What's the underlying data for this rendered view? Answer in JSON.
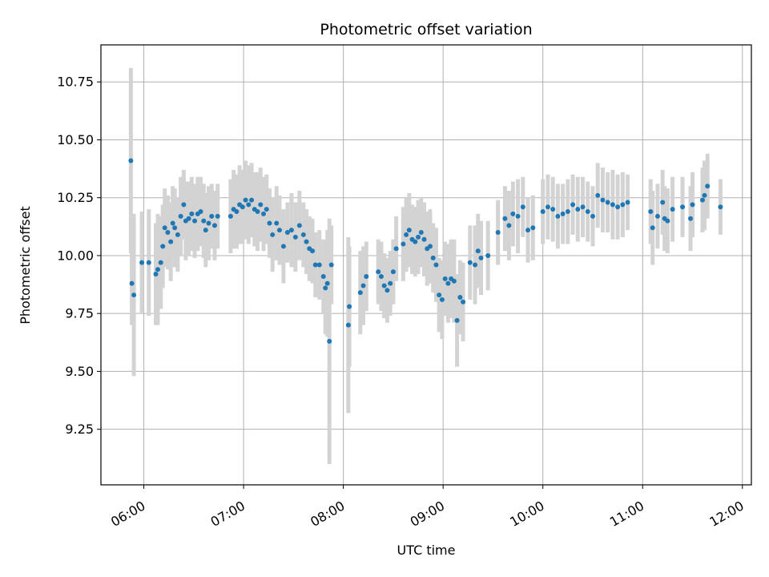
{
  "chart_data": {
    "type": "scatter",
    "title": "Photometric offset variation",
    "xlabel": "UTC time",
    "ylabel": "Photometric offset",
    "x_unit": "hours UTC",
    "xlim": [
      5.57,
      12.09
    ],
    "ylim": [
      9.01,
      10.91
    ],
    "xticks": [
      {
        "value": 6,
        "label": "06:00"
      },
      {
        "value": 7,
        "label": "07:00"
      },
      {
        "value": 8,
        "label": "08:00"
      },
      {
        "value": 9,
        "label": "09:00"
      },
      {
        "value": 10,
        "label": "10:00"
      },
      {
        "value": 11,
        "label": "11:00"
      },
      {
        "value": 12,
        "label": "12:00"
      }
    ],
    "yticks": [
      {
        "value": 9.25,
        "label": "9.25"
      },
      {
        "value": 9.5,
        "label": "9.50"
      },
      {
        "value": 9.75,
        "label": "9.75"
      },
      {
        "value": 10.0,
        "label": "10.00"
      },
      {
        "value": 10.25,
        "label": "10.25"
      },
      {
        "value": 10.5,
        "label": "10.50"
      },
      {
        "value": 10.75,
        "label": "10.75"
      }
    ],
    "grid": true,
    "point_color": "#1f77b4",
    "errorbar_color": "#d3d3d3",
    "series": [
      {
        "points": [
          [
            5.87,
            10.41,
            0.4
          ],
          [
            5.88,
            9.88,
            0.18
          ],
          [
            5.9,
            9.83,
            0.35
          ],
          [
            5.98,
            9.97,
            0.22
          ],
          [
            6.05,
            9.97,
            0.23
          ],
          [
            6.12,
            9.92,
            0.22
          ],
          [
            6.14,
            9.94,
            0.24
          ],
          [
            6.17,
            9.97,
            0.2
          ],
          [
            6.19,
            10.04,
            0.18
          ],
          [
            6.21,
            10.12,
            0.17
          ],
          [
            6.24,
            10.1,
            0.16
          ],
          [
            6.27,
            10.06,
            0.17
          ],
          [
            6.29,
            10.14,
            0.16
          ],
          [
            6.31,
            10.12,
            0.17
          ],
          [
            6.34,
            10.09,
            0.16
          ],
          [
            6.37,
            10.17,
            0.17
          ],
          [
            6.4,
            10.22,
            0.15
          ],
          [
            6.42,
            10.15,
            0.17
          ],
          [
            6.45,
            10.16,
            0.16
          ],
          [
            6.48,
            10.18,
            0.16
          ],
          [
            6.51,
            10.15,
            0.16
          ],
          [
            6.54,
            10.18,
            0.16
          ],
          [
            6.57,
            10.19,
            0.15
          ],
          [
            6.6,
            10.15,
            0.16
          ],
          [
            6.62,
            10.11,
            0.16
          ],
          [
            6.65,
            10.14,
            0.16
          ],
          [
            6.68,
            10.17,
            0.14
          ],
          [
            6.71,
            10.13,
            0.15
          ],
          [
            6.74,
            10.17,
            0.14
          ],
          [
            6.87,
            10.17,
            0.16
          ],
          [
            6.9,
            10.2,
            0.17
          ],
          [
            6.93,
            10.19,
            0.16
          ],
          [
            6.96,
            10.22,
            0.17
          ],
          [
            6.99,
            10.21,
            0.16
          ],
          [
            7.02,
            10.24,
            0.17
          ],
          [
            7.05,
            10.22,
            0.17
          ],
          [
            7.08,
            10.24,
            0.16
          ],
          [
            7.11,
            10.2,
            0.16
          ],
          [
            7.14,
            10.19,
            0.17
          ],
          [
            7.17,
            10.22,
            0.16
          ],
          [
            7.2,
            10.18,
            0.16
          ],
          [
            7.23,
            10.2,
            0.15
          ],
          [
            7.26,
            10.14,
            0.15
          ],
          [
            7.29,
            10.09,
            0.16
          ],
          [
            7.33,
            10.14,
            0.16
          ],
          [
            7.36,
            10.11,
            0.15
          ],
          [
            7.4,
            10.04,
            0.16
          ],
          [
            7.44,
            10.1,
            0.13
          ],
          [
            7.48,
            10.11,
            0.16
          ],
          [
            7.52,
            10.08,
            0.15
          ],
          [
            7.56,
            10.13,
            0.15
          ],
          [
            7.6,
            10.09,
            0.14
          ],
          [
            7.63,
            10.06,
            0.14
          ],
          [
            7.66,
            10.03,
            0.14
          ],
          [
            7.69,
            10.02,
            0.14
          ],
          [
            7.72,
            9.96,
            0.14
          ],
          [
            7.76,
            9.96,
            0.15
          ],
          [
            7.8,
            9.91,
            0.16
          ],
          [
            7.82,
            9.86,
            0.2
          ],
          [
            7.84,
            9.88,
            0.23
          ],
          [
            7.86,
            9.63,
            0.53
          ],
          [
            7.88,
            9.96,
            0.17
          ],
          [
            8.05,
            9.7,
            0.38
          ],
          [
            8.06,
            9.78,
            0.26
          ],
          [
            8.17,
            9.84,
            0.18
          ],
          [
            8.2,
            9.87,
            0.17
          ],
          [
            8.23,
            9.91,
            0.15
          ],
          [
            8.35,
            9.93,
            0.14
          ],
          [
            8.38,
            9.91,
            0.15
          ],
          [
            8.41,
            9.87,
            0.14
          ],
          [
            8.44,
            9.85,
            0.14
          ],
          [
            8.47,
            9.88,
            0.14
          ],
          [
            8.5,
            9.93,
            0.14
          ],
          [
            8.53,
            10.03,
            0.14
          ],
          [
            8.6,
            10.05,
            0.16
          ],
          [
            8.63,
            10.09,
            0.16
          ],
          [
            8.66,
            10.11,
            0.16
          ],
          [
            8.69,
            10.07,
            0.15
          ],
          [
            8.72,
            10.06,
            0.15
          ],
          [
            8.75,
            10.08,
            0.16
          ],
          [
            8.78,
            10.1,
            0.15
          ],
          [
            8.81,
            10.07,
            0.16
          ],
          [
            8.84,
            10.03,
            0.16
          ],
          [
            8.87,
            10.04,
            0.16
          ],
          [
            8.9,
            9.99,
            0.15
          ],
          [
            8.93,
            9.96,
            0.16
          ],
          [
            8.96,
            9.83,
            0.16
          ],
          [
            8.99,
            9.81,
            0.17
          ],
          [
            9.02,
            9.9,
            0.16
          ],
          [
            9.05,
            9.88,
            0.17
          ],
          [
            9.08,
            9.9,
            0.17
          ],
          [
            9.11,
            9.89,
            0.18
          ],
          [
            9.14,
            9.72,
            0.2
          ],
          [
            9.17,
            9.82,
            0.16
          ],
          [
            9.2,
            9.8,
            0.17
          ],
          [
            9.27,
            9.97,
            0.16
          ],
          [
            9.32,
            9.96,
            0.17
          ],
          [
            9.35,
            10.02,
            0.16
          ],
          [
            9.38,
            9.99,
            0.16
          ],
          [
            9.45,
            10.0,
            0.15
          ],
          [
            9.55,
            10.1,
            0.14
          ],
          [
            9.62,
            10.16,
            0.14
          ],
          [
            9.66,
            10.13,
            0.15
          ],
          [
            9.7,
            10.18,
            0.14
          ],
          [
            9.75,
            10.17,
            0.16
          ],
          [
            9.8,
            10.21,
            0.13
          ],
          [
            9.85,
            10.11,
            0.14
          ],
          [
            9.9,
            10.12,
            0.14
          ],
          [
            10.0,
            10.19,
            0.14
          ],
          [
            10.05,
            10.21,
            0.14
          ],
          [
            10.1,
            10.2,
            0.14
          ],
          [
            10.15,
            10.17,
            0.14
          ],
          [
            10.2,
            10.18,
            0.13
          ],
          [
            10.25,
            10.19,
            0.14
          ],
          [
            10.3,
            10.22,
            0.13
          ],
          [
            10.35,
            10.2,
            0.14
          ],
          [
            10.4,
            10.21,
            0.13
          ],
          [
            10.45,
            10.19,
            0.13
          ],
          [
            10.5,
            10.17,
            0.13
          ],
          [
            10.55,
            10.26,
            0.14
          ],
          [
            10.6,
            10.24,
            0.14
          ],
          [
            10.65,
            10.23,
            0.13
          ],
          [
            10.7,
            10.22,
            0.15
          ],
          [
            10.75,
            10.21,
            0.14
          ],
          [
            10.8,
            10.22,
            0.14
          ],
          [
            10.85,
            10.23,
            0.12
          ],
          [
            11.08,
            10.19,
            0.14
          ],
          [
            11.1,
            10.12,
            0.16
          ],
          [
            11.15,
            10.17,
            0.14
          ],
          [
            11.2,
            10.23,
            0.14
          ],
          [
            11.22,
            10.16,
            0.14
          ],
          [
            11.25,
            10.15,
            0.14
          ],
          [
            11.3,
            10.2,
            0.14
          ],
          [
            11.4,
            10.21,
            0.13
          ],
          [
            11.48,
            10.16,
            0.14
          ],
          [
            11.5,
            10.22,
            0.14
          ],
          [
            11.6,
            10.24,
            0.14
          ],
          [
            11.62,
            10.26,
            0.15
          ],
          [
            11.65,
            10.3,
            0.14
          ],
          [
            11.78,
            10.21,
            0.12
          ]
        ]
      }
    ]
  }
}
